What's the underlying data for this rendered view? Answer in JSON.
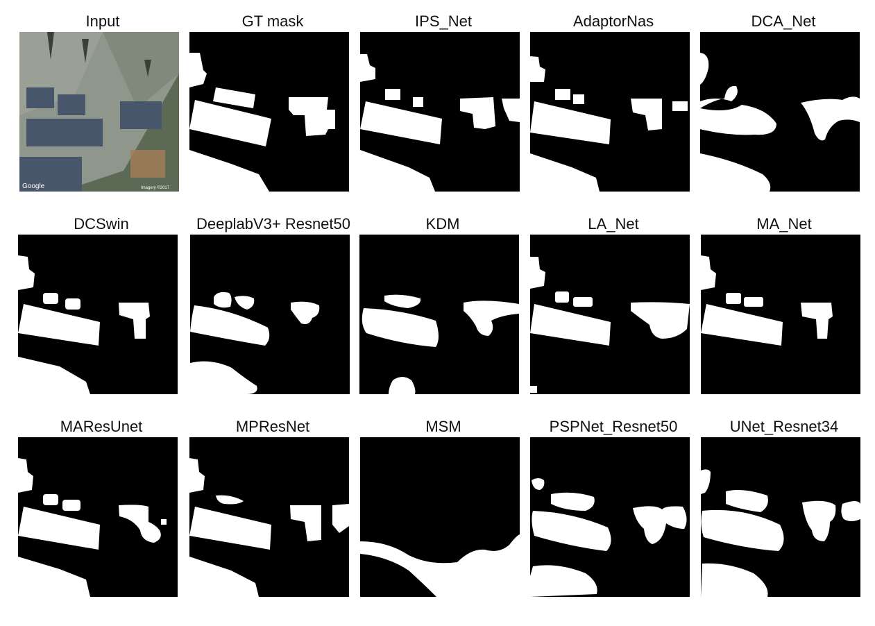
{
  "panels": [
    {
      "title": "Input",
      "kind": "satellite-image"
    },
    {
      "title": "GT mask",
      "kind": "mask"
    },
    {
      "title": "IPS_Net",
      "kind": "mask"
    },
    {
      "title": "AdaptorNas",
      "kind": "mask"
    },
    {
      "title": "DCA_Net",
      "kind": "mask"
    },
    {
      "title": "DCSwin",
      "kind": "mask"
    },
    {
      "title": "DeeplabV3+ Resnet50",
      "kind": "mask"
    },
    {
      "title": "KDM",
      "kind": "mask"
    },
    {
      "title": "LA_Net",
      "kind": "mask"
    },
    {
      "title": "MA_Net",
      "kind": "mask"
    },
    {
      "title": "MAResUnet",
      "kind": "mask"
    },
    {
      "title": "MPResNet",
      "kind": "mask"
    },
    {
      "title": "MSM",
      "kind": "mask"
    },
    {
      "title": "PSPNet_Resnet50",
      "kind": "mask"
    },
    {
      "title": "UNet_Resnet34",
      "kind": "mask"
    }
  ],
  "input_image": {
    "watermark_left": "Google",
    "watermark_right": "Imagery ©2017"
  },
  "colors": {
    "mask_background": "#000000",
    "mask_foreground": "#ffffff",
    "roof": "#8f968c",
    "panel": "#47566b"
  }
}
